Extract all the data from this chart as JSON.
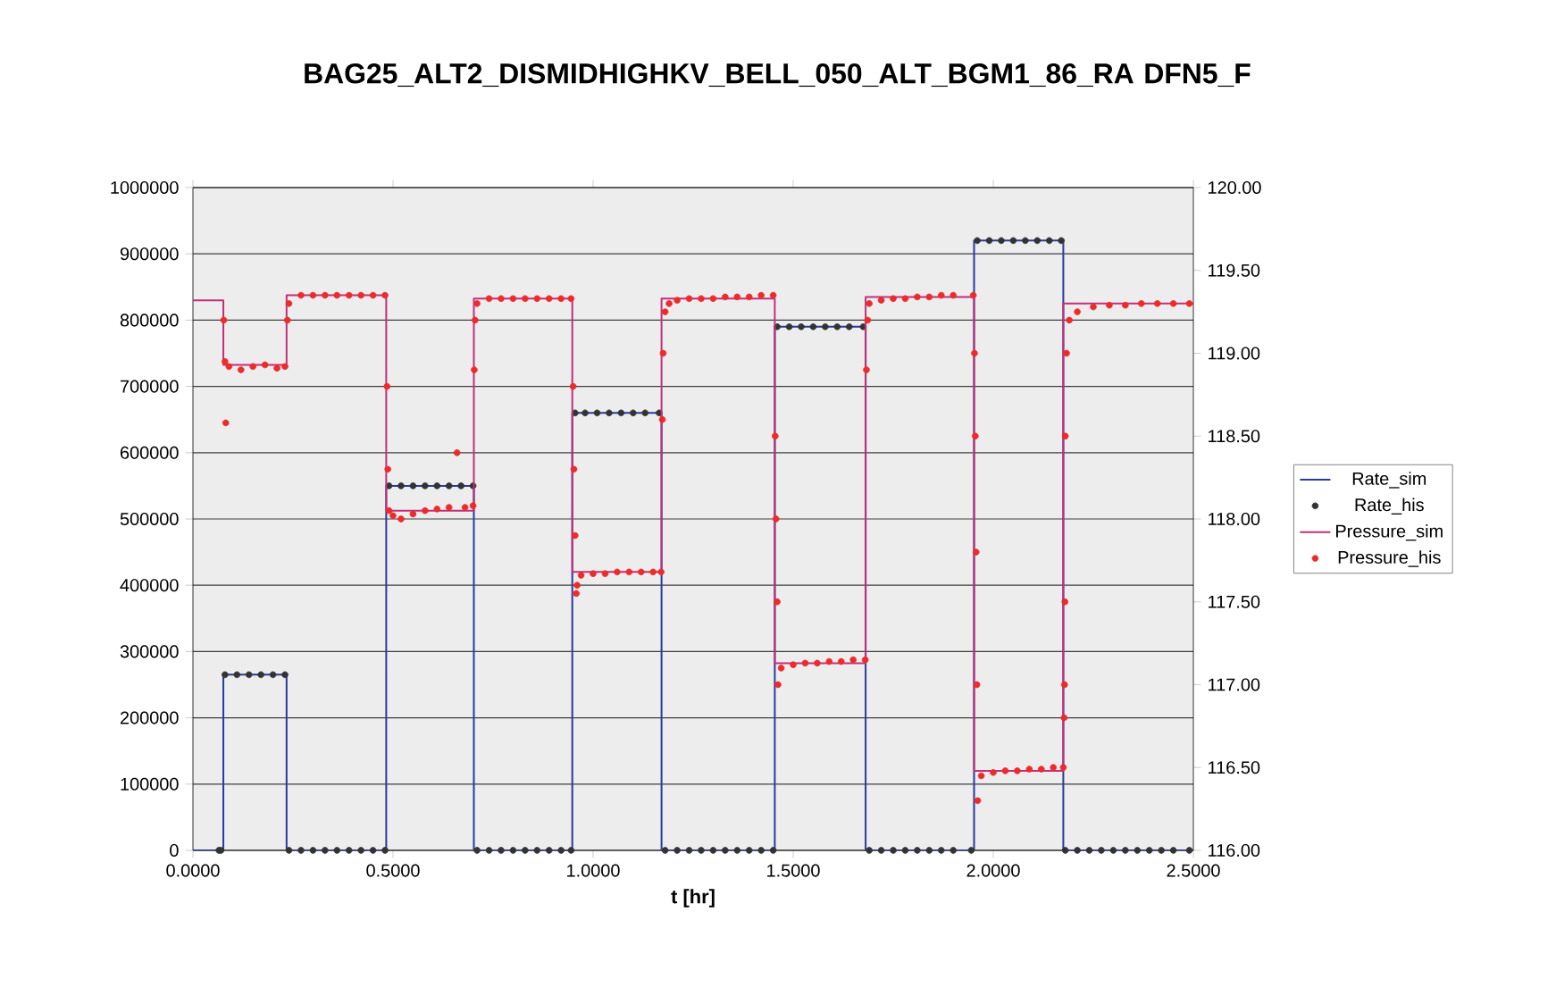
{
  "chart_data": {
    "type": "scatter",
    "title": "BAG25_ALT2_DISMIDHIGHKV_BELL_050_ALT_BGM1_86_RA DFN5_F",
    "xlabel": "t [hr]",
    "xlim": [
      0,
      2.5
    ],
    "xticks": [
      {
        "value": 0,
        "label": "0.0000"
      },
      {
        "value": 0.5,
        "label": "0.5000"
      },
      {
        "value": 1,
        "label": "1.0000"
      },
      {
        "value": 1.5,
        "label": "1.5000"
      },
      {
        "value": 2,
        "label": "2.0000"
      },
      {
        "value": 2.5,
        "label": "2.5000"
      }
    ],
    "ylim": [
      0,
      1000000
    ],
    "yticks": [
      0,
      100000,
      200000,
      300000,
      400000,
      500000,
      600000,
      700000,
      800000,
      900000,
      1000000
    ],
    "y2lim": [
      116,
      120
    ],
    "y2ticks": [
      {
        "value": 116,
        "label": "116.00"
      },
      {
        "value": 116.5,
        "label": "116.50"
      },
      {
        "value": 117,
        "label": "117.00"
      },
      {
        "value": 117.5,
        "label": "117.50"
      },
      {
        "value": 118,
        "label": "118.00"
      },
      {
        "value": 118.5,
        "label": "118.50"
      },
      {
        "value": 119,
        "label": "119.00"
      },
      {
        "value": 119.5,
        "label": "119.50"
      },
      {
        "value": 120,
        "label": "120.00"
      }
    ],
    "grid": "y",
    "legend": "right",
    "series": [
      {
        "name": "Rate_sim",
        "type": "step",
        "color": "#2a3a9a",
        "marker": "none",
        "x": [
          0,
          0.076,
          0.234,
          0.483,
          0.702,
          0.948,
          1.171,
          1.454,
          1.681,
          1.952,
          2.175,
          2.5
        ],
        "values": [
          0,
          265000,
          0,
          550000,
          0,
          660000,
          0,
          790000,
          0,
          920000,
          0,
          0
        ]
      },
      {
        "name": "Rate_his",
        "color": "#333333",
        "marker": "circle",
        "x": [
          0.065,
          0.07,
          0.08,
          0.11,
          0.14,
          0.17,
          0.2,
          0.23,
          0.24,
          0.27,
          0.3,
          0.33,
          0.36,
          0.39,
          0.42,
          0.45,
          0.48,
          0.49,
          0.52,
          0.55,
          0.58,
          0.61,
          0.64,
          0.67,
          0.7,
          0.71,
          0.74,
          0.77,
          0.8,
          0.83,
          0.86,
          0.89,
          0.92,
          0.945,
          0.955,
          0.98,
          1.01,
          1.04,
          1.07,
          1.1,
          1.13,
          1.165,
          1.18,
          1.21,
          1.24,
          1.27,
          1.3,
          1.33,
          1.36,
          1.39,
          1.42,
          1.45,
          1.46,
          1.49,
          1.52,
          1.55,
          1.58,
          1.61,
          1.64,
          1.675,
          1.69,
          1.72,
          1.75,
          1.78,
          1.81,
          1.84,
          1.87,
          1.9,
          1.945,
          1.96,
          1.99,
          2.02,
          2.05,
          2.08,
          2.11,
          2.14,
          2.17,
          2.18,
          2.21,
          2.24,
          2.27,
          2.3,
          2.33,
          2.36,
          2.39,
          2.42,
          2.45,
          2.49
        ],
        "values": [
          0,
          0,
          265000,
          265000,
          265000,
          265000,
          265000,
          265000,
          0,
          0,
          0,
          0,
          0,
          0,
          0,
          0,
          0,
          550000,
          550000,
          550000,
          550000,
          550000,
          550000,
          550000,
          550000,
          0,
          0,
          0,
          0,
          0,
          0,
          0,
          0,
          0,
          660000,
          660000,
          660000,
          660000,
          660000,
          660000,
          660000,
          660000,
          0,
          0,
          0,
          0,
          0,
          0,
          0,
          0,
          0,
          0,
          790000,
          790000,
          790000,
          790000,
          790000,
          790000,
          790000,
          790000,
          0,
          0,
          0,
          0,
          0,
          0,
          0,
          0,
          0,
          920000,
          920000,
          920000,
          920000,
          920000,
          920000,
          920000,
          920000,
          0,
          0,
          0,
          0,
          0,
          0,
          0,
          0,
          0,
          0,
          0
        ]
      },
      {
        "name": "Pressure_sim",
        "type": "step",
        "axis": "y2",
        "color": "#c0307a",
        "marker": "none",
        "x": [
          0,
          0.076,
          0.234,
          0.483,
          0.702,
          0.948,
          1.171,
          1.454,
          1.681,
          1.952,
          2.175,
          2.5
        ],
        "values": [
          119.32,
          118.93,
          119.35,
          118.05,
          119.33,
          117.68,
          119.33,
          117.13,
          119.34,
          116.48,
          119.3,
          119.3
        ]
      },
      {
        "name": "Pressure_his",
        "axis": "y2",
        "color": "#ee2a2a",
        "marker": "circle",
        "x": [
          0.077,
          0.08,
          0.082,
          0.09,
          0.12,
          0.15,
          0.18,
          0.21,
          0.23,
          0.236,
          0.24,
          0.27,
          0.3,
          0.33,
          0.36,
          0.39,
          0.42,
          0.45,
          0.48,
          0.485,
          0.487,
          0.49,
          0.5,
          0.52,
          0.55,
          0.58,
          0.61,
          0.64,
          0.66,
          0.68,
          0.7,
          0.703,
          0.705,
          0.71,
          0.74,
          0.77,
          0.8,
          0.83,
          0.86,
          0.89,
          0.92,
          0.945,
          0.95,
          0.952,
          0.955,
          0.958,
          0.96,
          0.97,
          1.0,
          1.03,
          1.06,
          1.09,
          1.12,
          1.15,
          1.17,
          1.173,
          1.175,
          1.18,
          1.19,
          1.21,
          1.24,
          1.27,
          1.3,
          1.33,
          1.36,
          1.39,
          1.42,
          1.45,
          1.455,
          1.457,
          1.46,
          1.462,
          1.47,
          1.5,
          1.53,
          1.56,
          1.59,
          1.62,
          1.65,
          1.68,
          1.683,
          1.686,
          1.69,
          1.72,
          1.75,
          1.78,
          1.81,
          1.84,
          1.87,
          1.9,
          1.95,
          1.953,
          1.955,
          1.957,
          1.959,
          1.961,
          1.97,
          2.0,
          2.03,
          2.06,
          2.09,
          2.12,
          2.15,
          2.175,
          2.177,
          2.178,
          2.179,
          2.18,
          2.183,
          2.19,
          2.21,
          2.25,
          2.29,
          2.33,
          2.37,
          2.41,
          2.45,
          2.49
        ],
        "values": [
          119.2,
          118.95,
          118.58,
          118.92,
          118.9,
          118.92,
          118.93,
          118.91,
          118.92,
          119.2,
          119.3,
          119.35,
          119.35,
          119.35,
          119.35,
          119.35,
          119.35,
          119.35,
          119.35,
          118.8,
          118.3,
          118.05,
          118.02,
          118.0,
          118.03,
          118.05,
          118.06,
          118.07,
          118.4,
          118.07,
          118.08,
          118.9,
          119.2,
          119.3,
          119.33,
          119.33,
          119.33,
          119.33,
          119.33,
          119.33,
          119.33,
          119.33,
          118.8,
          118.3,
          117.9,
          117.55,
          117.6,
          117.66,
          117.67,
          117.67,
          117.68,
          117.68,
          117.68,
          117.68,
          117.68,
          118.6,
          119.0,
          119.25,
          119.3,
          119.32,
          119.33,
          119.33,
          119.33,
          119.34,
          119.34,
          119.34,
          119.35,
          119.35,
          118.5,
          118.0,
          117.5,
          117.0,
          117.1,
          117.12,
          117.13,
          117.13,
          117.14,
          117.14,
          117.15,
          117.15,
          118.9,
          119.2,
          119.3,
          119.32,
          119.33,
          119.33,
          119.34,
          119.34,
          119.35,
          119.35,
          119.35,
          119.0,
          118.5,
          117.8,
          117.0,
          116.3,
          116.45,
          116.47,
          116.48,
          116.48,
          116.49,
          116.49,
          116.5,
          116.5,
          116.8,
          117.0,
          117.5,
          118.5,
          119.0,
          119.2,
          119.25,
          119.28,
          119.29,
          119.29,
          119.3,
          119.3,
          119.3,
          119.3
        ]
      }
    ]
  }
}
